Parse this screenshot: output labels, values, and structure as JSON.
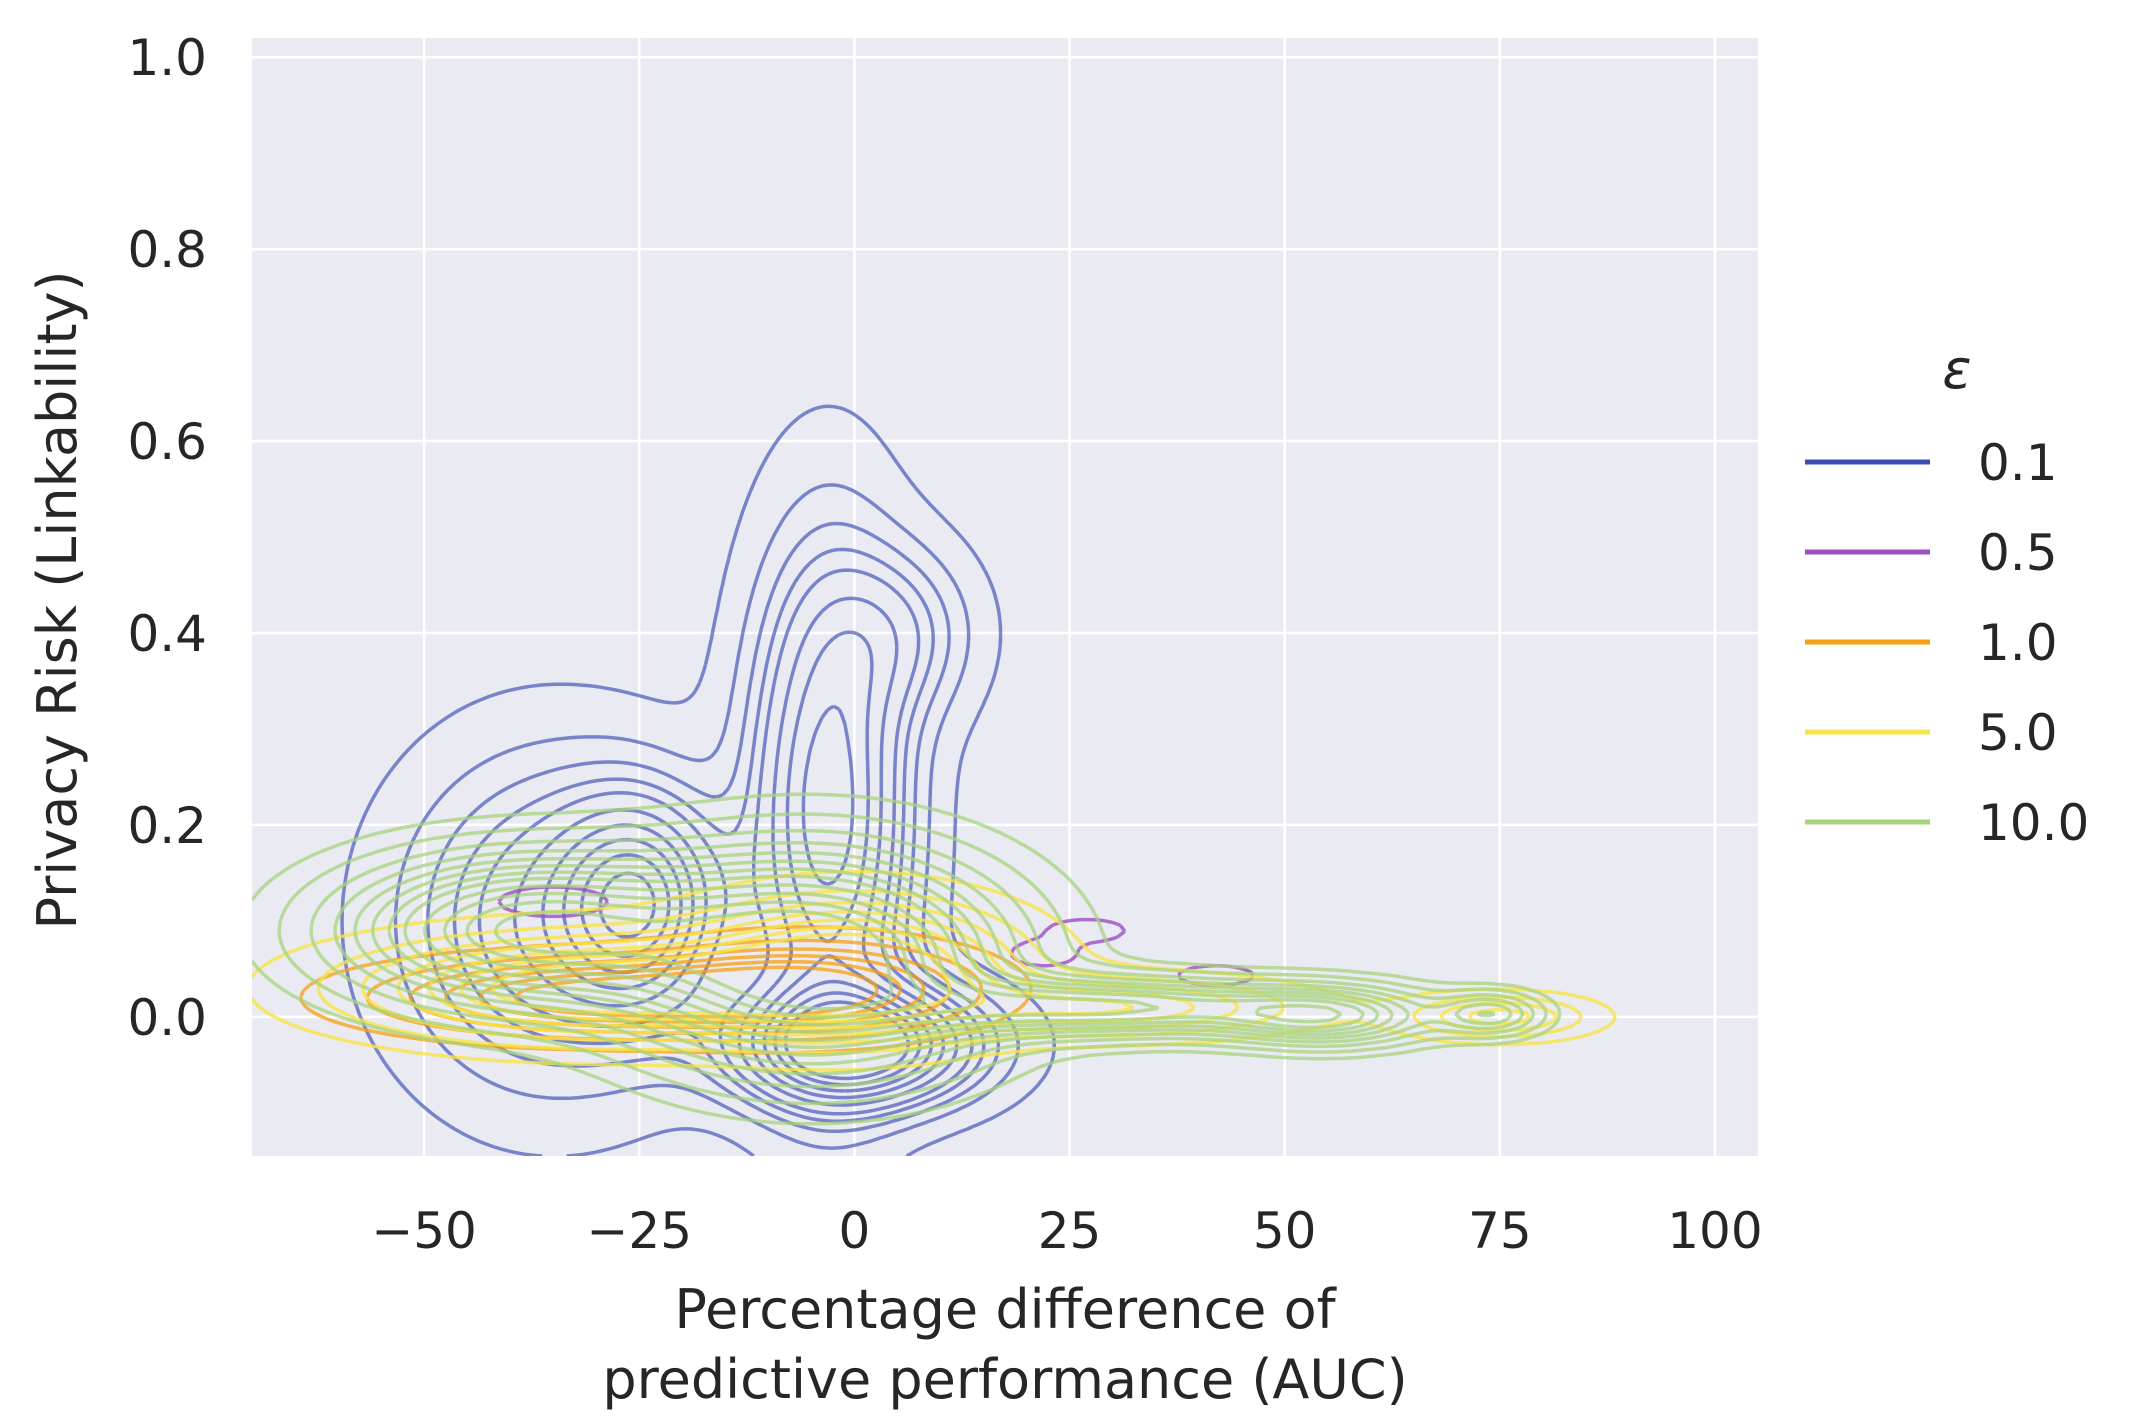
{
  "chart_data": {
    "type": "kde-contour",
    "xlabel_lines": [
      "Percentage difference of",
      "predictive performance (AUC)"
    ],
    "ylabel": "Privacy Risk (Linkability)",
    "xlim": [
      -70,
      105
    ],
    "ylim": [
      -0.145,
      1.02
    ],
    "x_ticks": [
      -50,
      -25,
      0,
      25,
      50,
      75,
      100
    ],
    "x_tick_labels": [
      "−50",
      "−25",
      "0",
      "25",
      "50",
      "75",
      "100"
    ],
    "y_ticks": [
      0.0,
      0.2,
      0.4,
      0.6,
      0.8,
      1.0
    ],
    "y_tick_labels": [
      "0.0",
      "0.2",
      "0.4",
      "0.6",
      "0.8",
      "1.0"
    ],
    "grid": true,
    "legend": {
      "title": "ε",
      "placement": "right",
      "entries": [
        {
          "label": "0.1",
          "color": "#3b4cb2"
        },
        {
          "label": "0.5",
          "color": "#9b4fc0"
        },
        {
          "label": "1.0",
          "color": "#f5a010"
        },
        {
          "label": "5.0",
          "color": "#f7e449"
        },
        {
          "label": "10.0",
          "color": "#a8d37f"
        }
      ]
    },
    "series": [
      {
        "name": "0.1",
        "color": "#3b4cb2",
        "components": [
          {
            "cx": -35,
            "cy": 0.1,
            "sx": 11,
            "sy": 0.11,
            "w": 0.6
          },
          {
            "cx": -25,
            "cy": 0.12,
            "sx": 6,
            "sy": 0.07,
            "w": 0.9
          },
          {
            "cx": -3,
            "cy": 0.22,
            "sx": 6,
            "sy": 0.17,
            "w": 1.0
          },
          {
            "cx": 0,
            "cy": -0.03,
            "sx": 9,
            "sy": 0.04,
            "w": 1.4
          },
          {
            "cx": 5,
            "cy": 0.4,
            "sx": 6,
            "sy": 0.06,
            "w": 0.35
          }
        ],
        "levels": [
          0.05,
          0.15,
          0.25,
          0.35,
          0.45,
          0.6,
          0.75,
          0.9,
          1.05,
          1.2
        ],
        "opacity": 0.65
      },
      {
        "name": "0.5",
        "color": "#9b4fc0",
        "components": [
          {
            "cx": -35,
            "cy": 0.12,
            "sx": 5,
            "sy": 0.012,
            "w": 1.0
          },
          {
            "cx": 22,
            "cy": 0.066,
            "sx": 3,
            "sy": 0.01,
            "w": 1.0
          },
          {
            "cx": 27,
            "cy": 0.09,
            "sx": 3.5,
            "sy": 0.009,
            "w": 1.0
          },
          {
            "cx": 42,
            "cy": 0.043,
            "sx": 3.5,
            "sy": 0.008,
            "w": 1.0
          }
        ],
        "levels": [
          0.45
        ],
        "opacity": 0.8
      },
      {
        "name": "1.0",
        "color": "#f5a010",
        "components": [
          {
            "cx": -30,
            "cy": 0.02,
            "sx": 16,
            "sy": 0.025,
            "w": 1.0
          },
          {
            "cx": -5,
            "cy": 0.03,
            "sx": 12,
            "sy": 0.03,
            "w": 0.9
          }
        ],
        "levels": [
          0.1,
          0.25,
          0.4,
          0.55,
          0.7,
          0.85
        ],
        "opacity": 0.75
      },
      {
        "name": "5.0",
        "color": "#f7e449",
        "components": [
          {
            "cx": -30,
            "cy": 0.03,
            "sx": 18,
            "sy": 0.035,
            "w": 1.0
          },
          {
            "cx": 0,
            "cy": 0.05,
            "sx": 12,
            "sy": 0.045,
            "w": 1.0
          },
          {
            "cx": 30,
            "cy": 0.01,
            "sx": 14,
            "sy": 0.02,
            "w": 0.55
          },
          {
            "cx": 75,
            "cy": 0.0,
            "sx": 7,
            "sy": 0.015,
            "w": 0.5
          }
        ],
        "levels": [
          0.08,
          0.2,
          0.32,
          0.44,
          0.56,
          0.68,
          0.8
        ],
        "opacity": 0.8
      },
      {
        "name": "10.0",
        "color": "#a8d37f",
        "components": [
          {
            "cx": -38,
            "cy": 0.09,
            "sx": 14,
            "sy": 0.05,
            "w": 1.0
          },
          {
            "cx": -5,
            "cy": 0.06,
            "sx": 14,
            "sy": 0.07,
            "w": 1.2
          },
          {
            "cx": 30,
            "cy": 0.01,
            "sx": 16,
            "sy": 0.02,
            "w": 0.7
          },
          {
            "cx": 55,
            "cy": 0.0,
            "sx": 8,
            "sy": 0.02,
            "w": 0.55
          },
          {
            "cx": 74,
            "cy": 0.003,
            "sx": 4,
            "sy": 0.015,
            "w": 0.4
          }
        ],
        "levels": [
          0.06,
          0.12,
          0.2,
          0.28,
          0.36,
          0.44,
          0.52,
          0.6,
          0.7,
          0.8,
          0.9,
          1.0
        ],
        "opacity": 0.75
      }
    ]
  }
}
